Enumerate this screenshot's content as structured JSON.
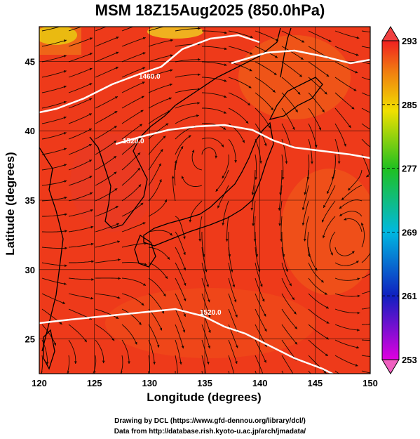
{
  "title": "MSM 18Z15Aug2025 (850.0hPa)",
  "xlabel": "Longitude (degrees)",
  "ylabel": "Latitude  (degrees)",
  "credits": {
    "line1": "Drawing by DCL (https://www.gfd-dennou.org/library/dcl/)",
    "line2": "Data from http://database.rish.kyoto-u.ac.jp/arch/jmadata/"
  },
  "map": {
    "lon_range": [
      120,
      150
    ],
    "lat_range": [
      22.5,
      47.5
    ],
    "x_ticks": [
      "120",
      "125",
      "130",
      "135",
      "140",
      "145",
      "150"
    ],
    "y_ticks": [
      "25",
      "30",
      "35",
      "40",
      "45"
    ],
    "grid": true,
    "field_color": "#ee3a1a"
  },
  "colorbar": {
    "min": 253,
    "max": 293,
    "labels": [
      "293",
      "285",
      "277",
      "269",
      "261",
      "253"
    ]
  },
  "contours": [
    {
      "label": "1460.0"
    },
    {
      "label": "1520.0"
    },
    {
      "label": "1520.0"
    }
  ]
}
